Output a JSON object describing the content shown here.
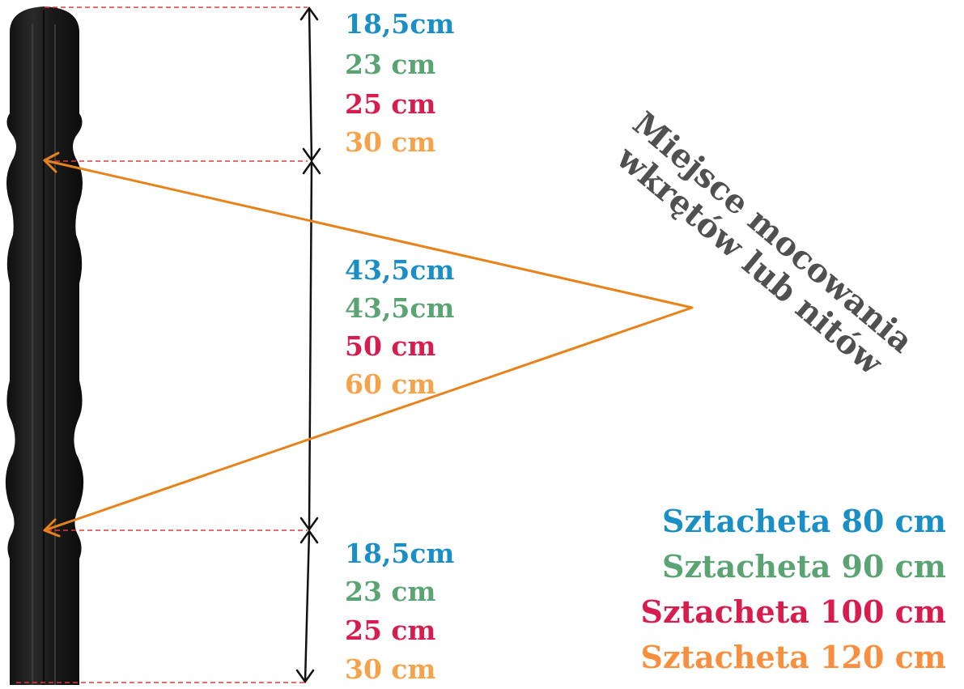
{
  "colors": {
    "blue": "#1a8fc6",
    "green": "#5aa373",
    "red": "#d71d4e",
    "orange": "#f4a34a",
    "arrow_orange": "#e8821a",
    "guide_red": "#e03a3a",
    "post": "#1d1d1d",
    "annotation_gray": "#505050"
  },
  "segments": {
    "top": [
      "18,5cm",
      "23 cm",
      "25 cm",
      "30 cm"
    ],
    "middle": [
      "43,5cm",
      "43,5cm",
      "50 cm",
      "60 cm"
    ],
    "bottom": [
      "18,5cm",
      "23 cm",
      "25 cm",
      "30 cm"
    ]
  },
  "annotation": {
    "line1": "Miejsce mocowania",
    "line2": "wkrętów lub nitów"
  },
  "legend": [
    "Sztacheta 80 cm",
    "Sztacheta 90 cm",
    "Sztacheta 100 cm",
    "Sztacheta 120 cm"
  ]
}
